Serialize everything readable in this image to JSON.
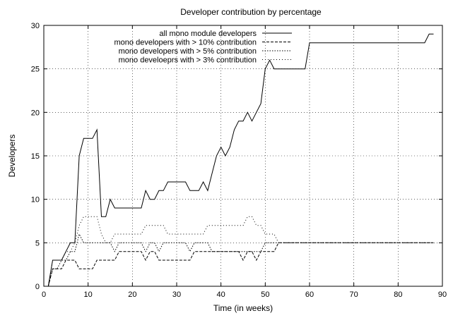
{
  "chart_data": {
    "type": "line",
    "title": "Developer contribution by percentage",
    "xlabel": "Time (in weeks)",
    "ylabel": "Developers",
    "xlim": [
      0,
      90
    ],
    "ylim": [
      0,
      30
    ],
    "xticks": [
      0,
      10,
      20,
      30,
      40,
      50,
      60,
      70,
      80,
      90
    ],
    "yticks": [
      0,
      5,
      10,
      15,
      20,
      25,
      30
    ],
    "grid": true,
    "legend_position": "top-right",
    "series": [
      {
        "name": "all mono module developers",
        "style": "solid",
        "x": [
          0,
          1,
          2,
          3,
          4,
          5,
          6,
          7,
          8,
          9,
          10,
          11,
          12,
          13,
          14,
          15,
          16,
          17,
          18,
          19,
          20,
          21,
          22,
          23,
          24,
          25,
          26,
          27,
          28,
          29,
          30,
          31,
          32,
          33,
          34,
          35,
          36,
          37,
          38,
          39,
          40,
          41,
          42,
          43,
          44,
          45,
          46,
          47,
          48,
          49,
          50,
          51,
          52,
          53,
          54,
          55,
          56,
          57,
          58,
          59,
          60,
          61,
          62,
          63,
          64,
          65,
          66,
          67,
          68,
          69,
          70,
          71,
          72,
          73,
          74,
          75,
          76,
          77,
          78,
          79,
          80,
          81,
          82,
          83,
          84,
          85,
          86,
          87,
          88
        ],
        "y": [
          0,
          0,
          3,
          3,
          3,
          4,
          5,
          5,
          15,
          17,
          17,
          17,
          18,
          8,
          8,
          10,
          9,
          9,
          9,
          9,
          9,
          9,
          9,
          11,
          10,
          10,
          11,
          11,
          12,
          12,
          12,
          12,
          12,
          11,
          11,
          11,
          12,
          11,
          13,
          15,
          16,
          15,
          16,
          18,
          19,
          19,
          20,
          19,
          20,
          21,
          25,
          26,
          25,
          25,
          25,
          25,
          25,
          25,
          25,
          25,
          28,
          28,
          28,
          28,
          28,
          28,
          28,
          28,
          28,
          28,
          28,
          28,
          28,
          28,
          28,
          28,
          28,
          28,
          28,
          28,
          28,
          28,
          28,
          28,
          28,
          28,
          28,
          29,
          29
        ]
      },
      {
        "name": "mono developers with > 10% contribution",
        "style": "dashed",
        "x": [
          0,
          1,
          2,
          3,
          4,
          5,
          6,
          7,
          8,
          9,
          10,
          11,
          12,
          13,
          14,
          15,
          16,
          17,
          18,
          19,
          20,
          21,
          22,
          23,
          24,
          25,
          26,
          27,
          28,
          29,
          30,
          31,
          32,
          33,
          34,
          35,
          36,
          37,
          38,
          39,
          40,
          41,
          42,
          43,
          44,
          45,
          46,
          47,
          48,
          49,
          50,
          51,
          52,
          53,
          54,
          55,
          56,
          57,
          58,
          59,
          60,
          61,
          62,
          63,
          64,
          65,
          66,
          67,
          68,
          69,
          70,
          71,
          72,
          73,
          74,
          75,
          76,
          77,
          78,
          79,
          80,
          81,
          82,
          83,
          84,
          85,
          86,
          87,
          88
        ],
        "y": [
          0,
          0,
          2,
          2,
          2,
          3,
          3,
          3,
          2,
          2,
          2,
          2,
          3,
          3,
          3,
          3,
          3,
          4,
          4,
          4,
          4,
          4,
          4,
          3,
          4,
          4,
          3,
          3,
          3,
          3,
          3,
          3,
          3,
          3,
          4,
          4,
          4,
          4,
          4,
          4,
          4,
          4,
          4,
          4,
          4,
          3,
          4,
          4,
          3,
          4,
          4,
          4,
          4,
          5,
          5,
          5,
          5,
          5,
          5,
          5,
          5,
          5,
          5,
          5,
          5,
          5,
          5,
          5,
          5,
          5,
          5,
          5,
          5,
          5,
          5,
          5,
          5,
          5,
          5,
          5,
          5,
          5,
          5,
          5,
          5,
          5,
          5,
          5,
          5
        ]
      },
      {
        "name": "mono developers with > 5% contribution",
        "style": "dotted",
        "x": [
          0,
          1,
          2,
          3,
          4,
          5,
          6,
          7,
          8,
          9,
          10,
          11,
          12,
          13,
          14,
          15,
          16,
          17,
          18,
          19,
          20,
          21,
          22,
          23,
          24,
          25,
          26,
          27,
          28,
          29,
          30,
          31,
          32,
          33,
          34,
          35,
          36,
          37,
          38,
          39,
          40,
          41,
          42,
          43,
          44,
          45,
          46,
          47,
          48,
          49,
          50,
          51,
          52,
          53,
          54,
          55,
          56,
          57,
          58,
          59,
          60,
          61,
          62,
          63,
          64,
          65,
          66,
          67,
          68,
          69,
          70,
          71,
          72,
          73,
          74,
          75,
          76,
          77,
          78,
          79,
          80,
          81,
          82,
          83,
          84,
          85,
          86,
          87,
          88
        ],
        "y": [
          0,
          0,
          2,
          2,
          3,
          3,
          4,
          4,
          6,
          5,
          5,
          5,
          5,
          5,
          5,
          5,
          4,
          5,
          5,
          5,
          5,
          5,
          5,
          4,
          5,
          5,
          4,
          5,
          5,
          5,
          5,
          5,
          5,
          4,
          5,
          5,
          5,
          5,
          4,
          4,
          4,
          4,
          4,
          4,
          4,
          4,
          4,
          4,
          4,
          4,
          5,
          5,
          5,
          5,
          5,
          5,
          5,
          5,
          5,
          5,
          5,
          5,
          5,
          5,
          5,
          5,
          5,
          5,
          5,
          5,
          5,
          5,
          5,
          5,
          5,
          5,
          5,
          5,
          5,
          5,
          5,
          5,
          5,
          5,
          5,
          5,
          5,
          5,
          5
        ]
      },
      {
        "name": "mono develoeprs with > 3% contribution",
        "style": "sparse-dotted",
        "x": [
          0,
          1,
          2,
          3,
          4,
          5,
          6,
          7,
          8,
          9,
          10,
          11,
          12,
          13,
          14,
          15,
          16,
          17,
          18,
          19,
          20,
          21,
          22,
          23,
          24,
          25,
          26,
          27,
          28,
          29,
          30,
          31,
          32,
          33,
          34,
          35,
          36,
          37,
          38,
          39,
          40,
          41,
          42,
          43,
          44,
          45,
          46,
          47,
          48,
          49,
          50,
          51,
          52,
          53,
          54,
          55,
          56,
          57,
          58,
          59,
          60,
          61,
          62,
          63,
          64,
          65,
          66,
          67,
          68,
          69,
          70,
          71,
          72,
          73,
          74,
          75,
          76,
          77,
          78,
          79,
          80,
          81,
          82,
          83,
          84,
          85,
          86,
          87,
          88
        ],
        "y": [
          0,
          0,
          3,
          3,
          3,
          4,
          4,
          5,
          7,
          8,
          8,
          8,
          8,
          6,
          5,
          5,
          6,
          6,
          6,
          6,
          6,
          6,
          6,
          7,
          7,
          7,
          7,
          7,
          6,
          6,
          6,
          6,
          6,
          6,
          6,
          6,
          6,
          7,
          7,
          7,
          7,
          7,
          7,
          7,
          7,
          7,
          8,
          8,
          7,
          7,
          6,
          6,
          6,
          5,
          5,
          5,
          5,
          5,
          5,
          5,
          5,
          5,
          5,
          5,
          5,
          5,
          5,
          5,
          5,
          5,
          5,
          5,
          5,
          5,
          5,
          5,
          5,
          5,
          5,
          5,
          5,
          5,
          5,
          5,
          5,
          5,
          5,
          5,
          5
        ]
      }
    ]
  }
}
